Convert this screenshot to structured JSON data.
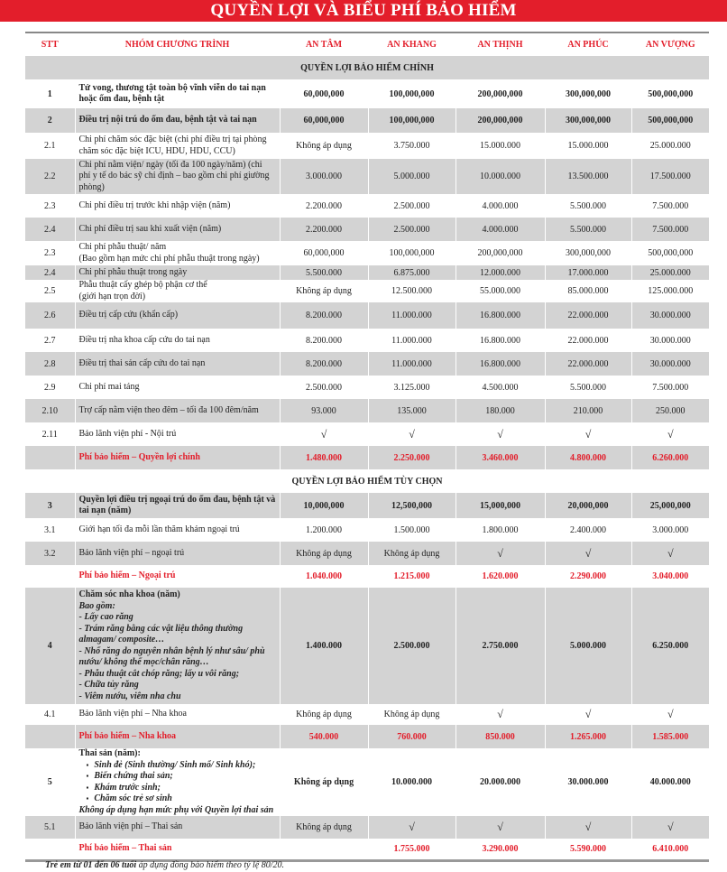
{
  "title": "QUYỀN LỢI VÀ BIỂU PHÍ BẢO HIỂM",
  "columns": [
    "STT",
    "NHÓM CHƯƠNG TRÌNH",
    "AN TÂM",
    "AN KHANG",
    "AN THỊNH",
    "AN PHÚC",
    "AN VƯỢNG"
  ],
  "colors": {
    "accent": "#e31e2b",
    "row_shade": "#d3d3d3"
  },
  "check_symbol": "√",
  "rows": [
    {
      "type": "section",
      "gray": true,
      "label": "QUYỀN LỢI BẢO HIỂM CHÍNH",
      "h": 26
    },
    {
      "stt": "1",
      "bold": true,
      "h": 32,
      "desc": [
        {
          "t": "Tử vong, thương tật toàn bộ vĩnh viễn do tai nạn hoặc ốm đau, bệnh tật"
        }
      ],
      "values": [
        "60,000,000",
        "100,000,000",
        "200,000,000",
        "300,000,000",
        "500,000,000"
      ]
    },
    {
      "stt": "2",
      "bold": true,
      "gray": true,
      "h": 27,
      "desc": [
        {
          "t": "Điều trị nội trú do ốm đau, bệnh tật và tai nạn"
        }
      ],
      "values": [
        "60,000,000",
        "100,000,000",
        "200,000,000",
        "300,000,000",
        "500,000,000"
      ]
    },
    {
      "stt": "2.1",
      "h": 29,
      "desc": [
        {
          "t": "Chi phí chăm sóc đặc biệt (chi phí điều trị tại phòng chăm sóc đặc biệt ICU, HDU, HDU, CCU)"
        }
      ],
      "values": [
        "Không áp dụng",
        "3.750.000",
        "15.000.000",
        "15.000.000",
        "25.000.000"
      ]
    },
    {
      "stt": "2.2",
      "gray": true,
      "h": 39,
      "desc": [
        {
          "t": "Chi phí nằm viện/ ngày (tối đa 100 ngày/năm) (chi phí y tế do bác sỹ chỉ định – bao gồm chi phí giường phòng)"
        }
      ],
      "values": [
        "3.000.000",
        "5.000.000",
        "10.000.000",
        "13.500.000",
        "17.500.000"
      ]
    },
    {
      "stt": "2.3",
      "h": 26,
      "desc": [
        {
          "t": "Chi phí điều trị trước khi nhập viện (năm)"
        }
      ],
      "values": [
        "2.200.000",
        "2.500.000",
        "4.000.000",
        "5.500.000",
        "7.500.000"
      ]
    },
    {
      "stt": "2.4",
      "gray": true,
      "h": 26,
      "desc": [
        {
          "t": "Chi phí điều trị sau khi xuất viện (năm)"
        }
      ],
      "values": [
        "2.200.000",
        "2.500.000",
        "4.000.000",
        "5.500.000",
        "7.500.000"
      ]
    },
    {
      "stt": "2.3",
      "h": 27,
      "desc": [
        {
          "t": "Chi phí phẫu thuật/ năm"
        },
        {
          "t": "(Bao gồm hạn mức chi phí phẫu thuật trong ngày)"
        }
      ],
      "values": [
        "60,000,000",
        "100,000,000",
        "200,000,000",
        "300,000,000",
        "500,000,000"
      ]
    },
    {
      "stt": "2.4",
      "gray": true,
      "h": 16,
      "desc": [
        {
          "t": "Chi phí phẫu thuật trong ngày"
        }
      ],
      "values": [
        "5.500.000",
        "6.875.000",
        "12.000.000",
        "17.000.000",
        "25.000.000"
      ]
    },
    {
      "stt": "2.5",
      "h": 25,
      "desc": [
        {
          "t": "Phẫu thuật cấy ghép bộ phận cơ thể"
        },
        {
          "t": "(giới hạn trọn đời)"
        }
      ],
      "values": [
        "Không áp dụng",
        "12.500.000",
        "55.000.000",
        "85.000.000",
        "125.000.000"
      ]
    },
    {
      "stt": "2.6",
      "gray": true,
      "h": 29,
      "desc": [
        {
          "t": "Điều trị cấp cứu (khẩn cấp)"
        }
      ],
      "values": [
        "8.200.000",
        "11.000.000",
        "16.800.000",
        "22.000.000",
        "30.000.000"
      ]
    },
    {
      "stt": "2.7",
      "h": 26,
      "desc": [
        {
          "t": "Điều trị nha khoa cấp cứu do tai nạn"
        }
      ],
      "values": [
        "8.200.000",
        "11.000.000",
        "16.800.000",
        "22.000.000",
        "30.000.000"
      ]
    },
    {
      "stt": "2.8",
      "gray": true,
      "h": 26,
      "desc": [
        {
          "t": "Điều trị thai sản cấp cứu do tai nạn"
        }
      ],
      "values": [
        "8.200.000",
        "11.000.000",
        "16.800.000",
        "22.000.000",
        "30.000.000"
      ]
    },
    {
      "stt": "2.9",
      "h": 26,
      "desc": [
        {
          "t": "Chi phí mai táng"
        }
      ],
      "values": [
        "2.500.000",
        "3.125.000",
        "4.500.000",
        "5.500.000",
        "7.500.000"
      ]
    },
    {
      "stt": "2.10",
      "gray": true,
      "h": 26,
      "desc": [
        {
          "t": "Trợ cấp nằm viện theo đêm – tối đa 100 đêm/năm"
        }
      ],
      "values": [
        "93.000",
        "135.000",
        "180.000",
        "210.000",
        "250.000"
      ]
    },
    {
      "stt": "2.11",
      "h": 26,
      "desc": [
        {
          "t": "Bảo lãnh viện phí - Nội trú"
        }
      ],
      "values": [
        "√",
        "√",
        "√",
        "√",
        "√"
      ]
    },
    {
      "stt": "",
      "fee": true,
      "gray": true,
      "h": 26,
      "desc": [
        {
          "t": "Phí bảo hiểm – Quyền lợi chính"
        }
      ],
      "values": [
        "1.480.000",
        "2.250.000",
        "3.460.000",
        "4.800.000",
        "6.260.000"
      ]
    },
    {
      "type": "section",
      "label": "QUYỀN LỢI BẢO HIỂM TÙY CHỌN",
      "h": 26
    },
    {
      "stt": "3",
      "bold": true,
      "gray": true,
      "h": 28,
      "desc": [
        {
          "t": "Quyền lợi điều trị ngoại trú do ốm đau, bệnh tật và tai nạn (năm)"
        }
      ],
      "values": [
        "10,000,000",
        "12,500,000",
        "15,000,000",
        "20,000,000",
        "25,000,000"
      ]
    },
    {
      "stt": "3.1",
      "h": 26,
      "desc": [
        {
          "t": "Giới hạn tối đa mỗi lần thăm khám ngoại trú"
        }
      ],
      "values": [
        "1.200.000",
        "1.500.000",
        "1.800.000",
        "2.400.000",
        "3.000.000"
      ]
    },
    {
      "stt": "3.2",
      "gray": true,
      "h": 26,
      "desc": [
        {
          "t": "Bảo lãnh viện phí – ngoại trú"
        }
      ],
      "values": [
        "Không áp dụng",
        "Không áp dụng",
        "√",
        "√",
        "√"
      ]
    },
    {
      "stt": "",
      "fee": true,
      "h": 25,
      "desc": [
        {
          "t": "Phí bảo hiểm – Ngoại trú"
        }
      ],
      "values": [
        "1.040.000",
        "1.215.000",
        "1.620.000",
        "2.290.000",
        "3.040.000"
      ]
    },
    {
      "stt": "4",
      "bold": true,
      "gray": true,
      "h": 129,
      "desc": [
        {
          "t": "Chăm sóc nha khoa (năm)",
          "s": "b"
        },
        {
          "t": "Bao gồm:",
          "s": "it"
        },
        {
          "t": "- Lấy cao răng",
          "s": "it"
        },
        {
          "t": "- Trám răng bằng các vật liệu thông thường almagam/ composite…",
          "s": "it"
        },
        {
          "t": "- Nhổ răng do nguyên nhân bệnh lý như sâu/ phù nướu/ không thể mọc/chân răng…",
          "s": "it"
        },
        {
          "t": "- Phẫu thuật cắt chóp răng; lấy u vôi răng;",
          "s": "it"
        },
        {
          "t": "- Chữa tủy răng",
          "s": "it"
        },
        {
          "t": "- Viêm nướu, viêm nha chu",
          "s": "it"
        }
      ],
      "values": [
        "1.400.000",
        "2.500.000",
        "2.750.000",
        "5.000.000",
        "6.250.000"
      ]
    },
    {
      "stt": "4.1",
      "h": 23,
      "desc": [
        {
          "t": "Bảo lãnh viện phí – Nha khoa"
        }
      ],
      "values": [
        "Không áp dụng",
        "Không áp dụng",
        "√",
        "√",
        "√"
      ]
    },
    {
      "stt": "",
      "fee": true,
      "gray": true,
      "h": 26,
      "desc": [
        {
          "t": "Phí bảo hiểm – Nha khoa"
        }
      ],
      "values": [
        "540.000",
        "760.000",
        "850.000",
        "1.265.000",
        "1.585.000"
      ]
    },
    {
      "stt": "5",
      "bold": true,
      "h": 71,
      "desc": [
        {
          "t": "Thai sản (năm):",
          "s": "b"
        },
        {
          "t": "Sinh đẻ (Sinh thường/ Sinh mổ/ Sinh khó);",
          "s": "bul"
        },
        {
          "t": "Biến chứng thai sản;",
          "s": "bul"
        },
        {
          "t": "Khám trước sinh;",
          "s": "bul"
        },
        {
          "t": "Chăm sóc trẻ sơ sinh",
          "s": "bul"
        },
        {
          "t": "Không áp dụng hạn mức phụ với Quyền lợi thai sản",
          "s": "bi"
        }
      ],
      "values": [
        "Không áp dụng",
        "10.000.000",
        "20.000.000",
        "30.000.000",
        "40.000.000"
      ]
    },
    {
      "stt": "5.1",
      "gray": true,
      "h": 25,
      "desc": [
        {
          "t": "Bảo lãnh viện phí – Thai sản"
        }
      ],
      "values": [
        "Không áp dụng",
        "√",
        "√",
        "√",
        "√"
      ]
    },
    {
      "stt": "",
      "fee": true,
      "last": true,
      "h": 24,
      "desc": [
        {
          "t": "Phí bảo hiểm – Thai sản"
        }
      ],
      "values": [
        "",
        "1.755.000",
        "3.290.000",
        "5.590.000",
        "6.410.000"
      ]
    }
  ],
  "footnote": {
    "bold": "Trẻ em từ 01 đến 06 tuổi",
    "text": " áp dụng đồng bảo hiểm theo tỷ lệ 80/20."
  }
}
